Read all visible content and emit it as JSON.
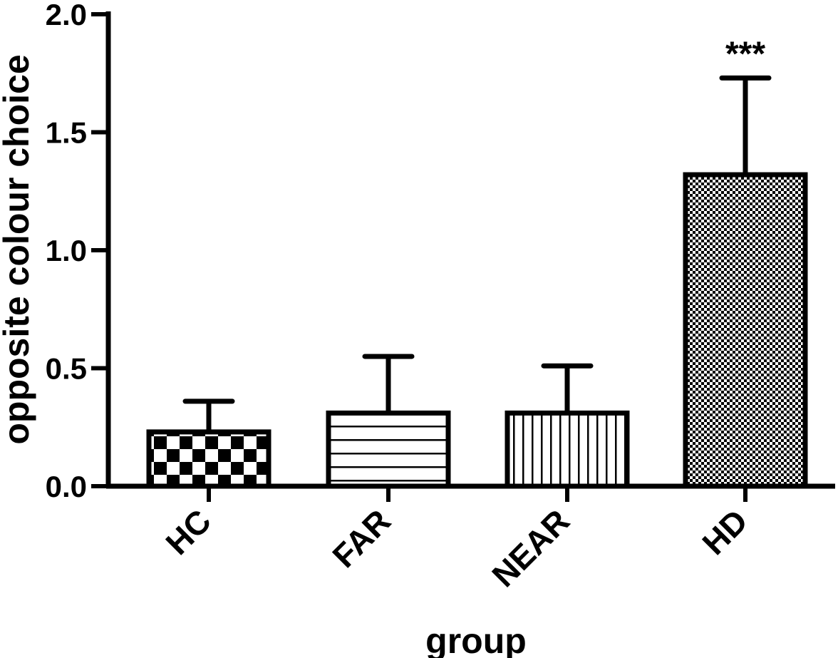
{
  "chart_data": {
    "type": "bar",
    "title": "",
    "xlabel": "group",
    "ylabel": "opposite colour choice",
    "ylim": [
      0,
      2.0
    ],
    "yticks": [
      "0.0",
      "0.5",
      "1.0",
      "1.5",
      "2.0"
    ],
    "categories": [
      "HC",
      "FAR",
      "NEAR",
      "HD"
    ],
    "values": [
      0.23,
      0.31,
      0.31,
      1.32
    ],
    "error_upper": [
      0.36,
      0.55,
      0.51,
      1.73
    ],
    "patterns": [
      "checkerboard",
      "horizontal-lines",
      "vertical-lines",
      "fine-checkerboard"
    ],
    "annotations": [
      {
        "category": "HD",
        "text": "***"
      }
    ],
    "grid": false,
    "colors": {
      "ink": "#000000",
      "background": "#ffffff"
    }
  }
}
